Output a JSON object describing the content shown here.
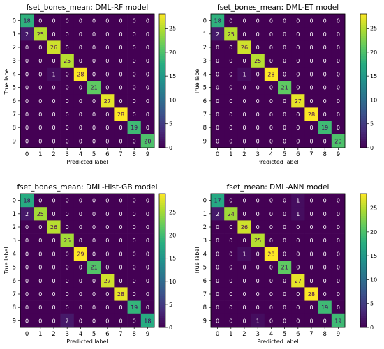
{
  "figure": {
    "background": "#ffffff"
  },
  "colormap": {
    "name": "viridis",
    "stops": [
      "#440154",
      "#472c7a",
      "#3b528b",
      "#2c728e",
      "#21918c",
      "#27ad81",
      "#5ec962",
      "#aadc32",
      "#fde725"
    ],
    "text_light": "#ffffff",
    "text_dark": "#440154"
  },
  "chart_data": [
    {
      "type": "heatmap",
      "title": "fset_bones_mean: DML-RF model",
      "xlabel": "Predicted label",
      "ylabel": "True label",
      "x_ticks": [
        "0",
        "1",
        "2",
        "3",
        "4",
        "5",
        "6",
        "7",
        "8",
        "9"
      ],
      "y_ticks": [
        "0",
        "1",
        "2",
        "3",
        "4",
        "5",
        "6",
        "7",
        "8",
        "9"
      ],
      "vmin": 0,
      "vmax": 28,
      "colorbar_ticks": [
        0,
        5,
        10,
        15,
        20,
        25
      ],
      "matrix": [
        [
          18,
          0,
          0,
          0,
          0,
          0,
          0,
          0,
          0,
          0
        ],
        [
          2,
          25,
          0,
          0,
          0,
          0,
          0,
          0,
          0,
          0
        ],
        [
          0,
          0,
          26,
          0,
          0,
          0,
          0,
          0,
          0,
          0
        ],
        [
          0,
          0,
          0,
          25,
          0,
          0,
          0,
          0,
          0,
          0
        ],
        [
          0,
          0,
          1,
          0,
          28,
          0,
          0,
          0,
          0,
          0
        ],
        [
          0,
          0,
          0,
          0,
          0,
          21,
          0,
          0,
          0,
          0
        ],
        [
          0,
          0,
          0,
          0,
          0,
          0,
          27,
          0,
          0,
          0
        ],
        [
          0,
          0,
          0,
          0,
          0,
          0,
          0,
          28,
          0,
          0
        ],
        [
          0,
          0,
          0,
          0,
          0,
          0,
          0,
          0,
          19,
          0
        ],
        [
          0,
          0,
          0,
          0,
          0,
          0,
          0,
          0,
          0,
          20
        ]
      ]
    },
    {
      "type": "heatmap",
      "title": "fset_bones_mean: DML-ET model",
      "xlabel": "Predicted label",
      "ylabel": "True label",
      "x_ticks": [
        "0",
        "1",
        "2",
        "3",
        "4",
        "5",
        "6",
        "7",
        "8",
        "9"
      ],
      "y_ticks": [
        "0",
        "1",
        "2",
        "3",
        "4",
        "5",
        "6",
        "7",
        "8",
        "9"
      ],
      "vmin": 0,
      "vmax": 28,
      "colorbar_ticks": [
        0,
        5,
        10,
        15,
        20,
        25
      ],
      "matrix": [
        [
          18,
          0,
          0,
          0,
          0,
          0,
          0,
          0,
          0,
          0
        ],
        [
          2,
          25,
          0,
          0,
          0,
          0,
          0,
          0,
          0,
          0
        ],
        [
          0,
          0,
          26,
          0,
          0,
          0,
          0,
          0,
          0,
          0
        ],
        [
          0,
          0,
          0,
          25,
          0,
          0,
          0,
          0,
          0,
          0
        ],
        [
          0,
          0,
          1,
          0,
          28,
          0,
          0,
          0,
          0,
          0
        ],
        [
          0,
          0,
          0,
          0,
          0,
          21,
          0,
          0,
          0,
          0
        ],
        [
          0,
          0,
          0,
          0,
          0,
          0,
          27,
          0,
          0,
          0
        ],
        [
          0,
          0,
          0,
          0,
          0,
          0,
          0,
          28,
          0,
          0
        ],
        [
          0,
          0,
          0,
          0,
          0,
          0,
          0,
          0,
          19,
          0
        ],
        [
          0,
          0,
          0,
          0,
          0,
          0,
          0,
          0,
          0,
          20
        ]
      ]
    },
    {
      "type": "heatmap",
      "title": "fset_bones_mean: DML-Hist-GB model",
      "xlabel": "Predicted label",
      "ylabel": "True label",
      "x_ticks": [
        "0",
        "1",
        "2",
        "3",
        "4",
        "5",
        "6",
        "7",
        "8",
        "9"
      ],
      "y_ticks": [
        "0",
        "1",
        "2",
        "3",
        "4",
        "5",
        "6",
        "7",
        "8",
        "9"
      ],
      "vmin": 0,
      "vmax": 29,
      "colorbar_ticks": [
        0,
        5,
        10,
        15,
        20,
        25
      ],
      "matrix": [
        [
          18,
          0,
          0,
          0,
          0,
          0,
          0,
          0,
          0,
          0
        ],
        [
          2,
          25,
          0,
          0,
          0,
          0,
          0,
          0,
          0,
          0
        ],
        [
          0,
          0,
          26,
          0,
          0,
          0,
          0,
          0,
          0,
          0
        ],
        [
          0,
          0,
          0,
          25,
          0,
          0,
          0,
          0,
          0,
          0
        ],
        [
          0,
          0,
          0,
          0,
          29,
          0,
          0,
          0,
          0,
          0
        ],
        [
          0,
          0,
          0,
          0,
          0,
          21,
          0,
          0,
          0,
          0
        ],
        [
          0,
          0,
          0,
          0,
          0,
          0,
          27,
          0,
          0,
          0
        ],
        [
          0,
          0,
          0,
          0,
          0,
          0,
          0,
          28,
          0,
          0
        ],
        [
          0,
          0,
          0,
          0,
          0,
          0,
          0,
          0,
          19,
          0
        ],
        [
          0,
          0,
          0,
          2,
          0,
          0,
          0,
          0,
          0,
          18
        ]
      ]
    },
    {
      "type": "heatmap",
      "title": "fset_mean: DML-ANN model",
      "xlabel": "Predicted label",
      "ylabel": "True label",
      "x_ticks": [
        "0",
        "1",
        "2",
        "3",
        "4",
        "5",
        "6",
        "7",
        "8",
        "9"
      ],
      "y_ticks": [
        "0",
        "1",
        "2",
        "3",
        "4",
        "5",
        "6",
        "7",
        "8",
        "9"
      ],
      "vmin": 0,
      "vmax": 28,
      "colorbar_ticks": [
        0,
        5,
        10,
        15,
        20,
        25
      ],
      "matrix": [
        [
          17,
          0,
          0,
          0,
          0,
          0,
          1,
          0,
          0,
          0
        ],
        [
          2,
          24,
          0,
          0,
          0,
          0,
          1,
          0,
          0,
          0
        ],
        [
          0,
          0,
          26,
          0,
          0,
          0,
          0,
          0,
          0,
          0
        ],
        [
          0,
          0,
          0,
          25,
          0,
          0,
          0,
          0,
          0,
          0
        ],
        [
          0,
          0,
          1,
          0,
          28,
          0,
          0,
          0,
          0,
          0
        ],
        [
          0,
          0,
          0,
          0,
          0,
          21,
          0,
          0,
          0,
          0
        ],
        [
          0,
          0,
          0,
          0,
          0,
          0,
          27,
          0,
          0,
          0
        ],
        [
          0,
          0,
          0,
          0,
          0,
          0,
          0,
          28,
          0,
          0
        ],
        [
          0,
          0,
          0,
          0,
          0,
          0,
          0,
          0,
          19,
          0
        ],
        [
          0,
          0,
          0,
          1,
          0,
          0,
          0,
          0,
          0,
          19
        ]
      ]
    }
  ]
}
